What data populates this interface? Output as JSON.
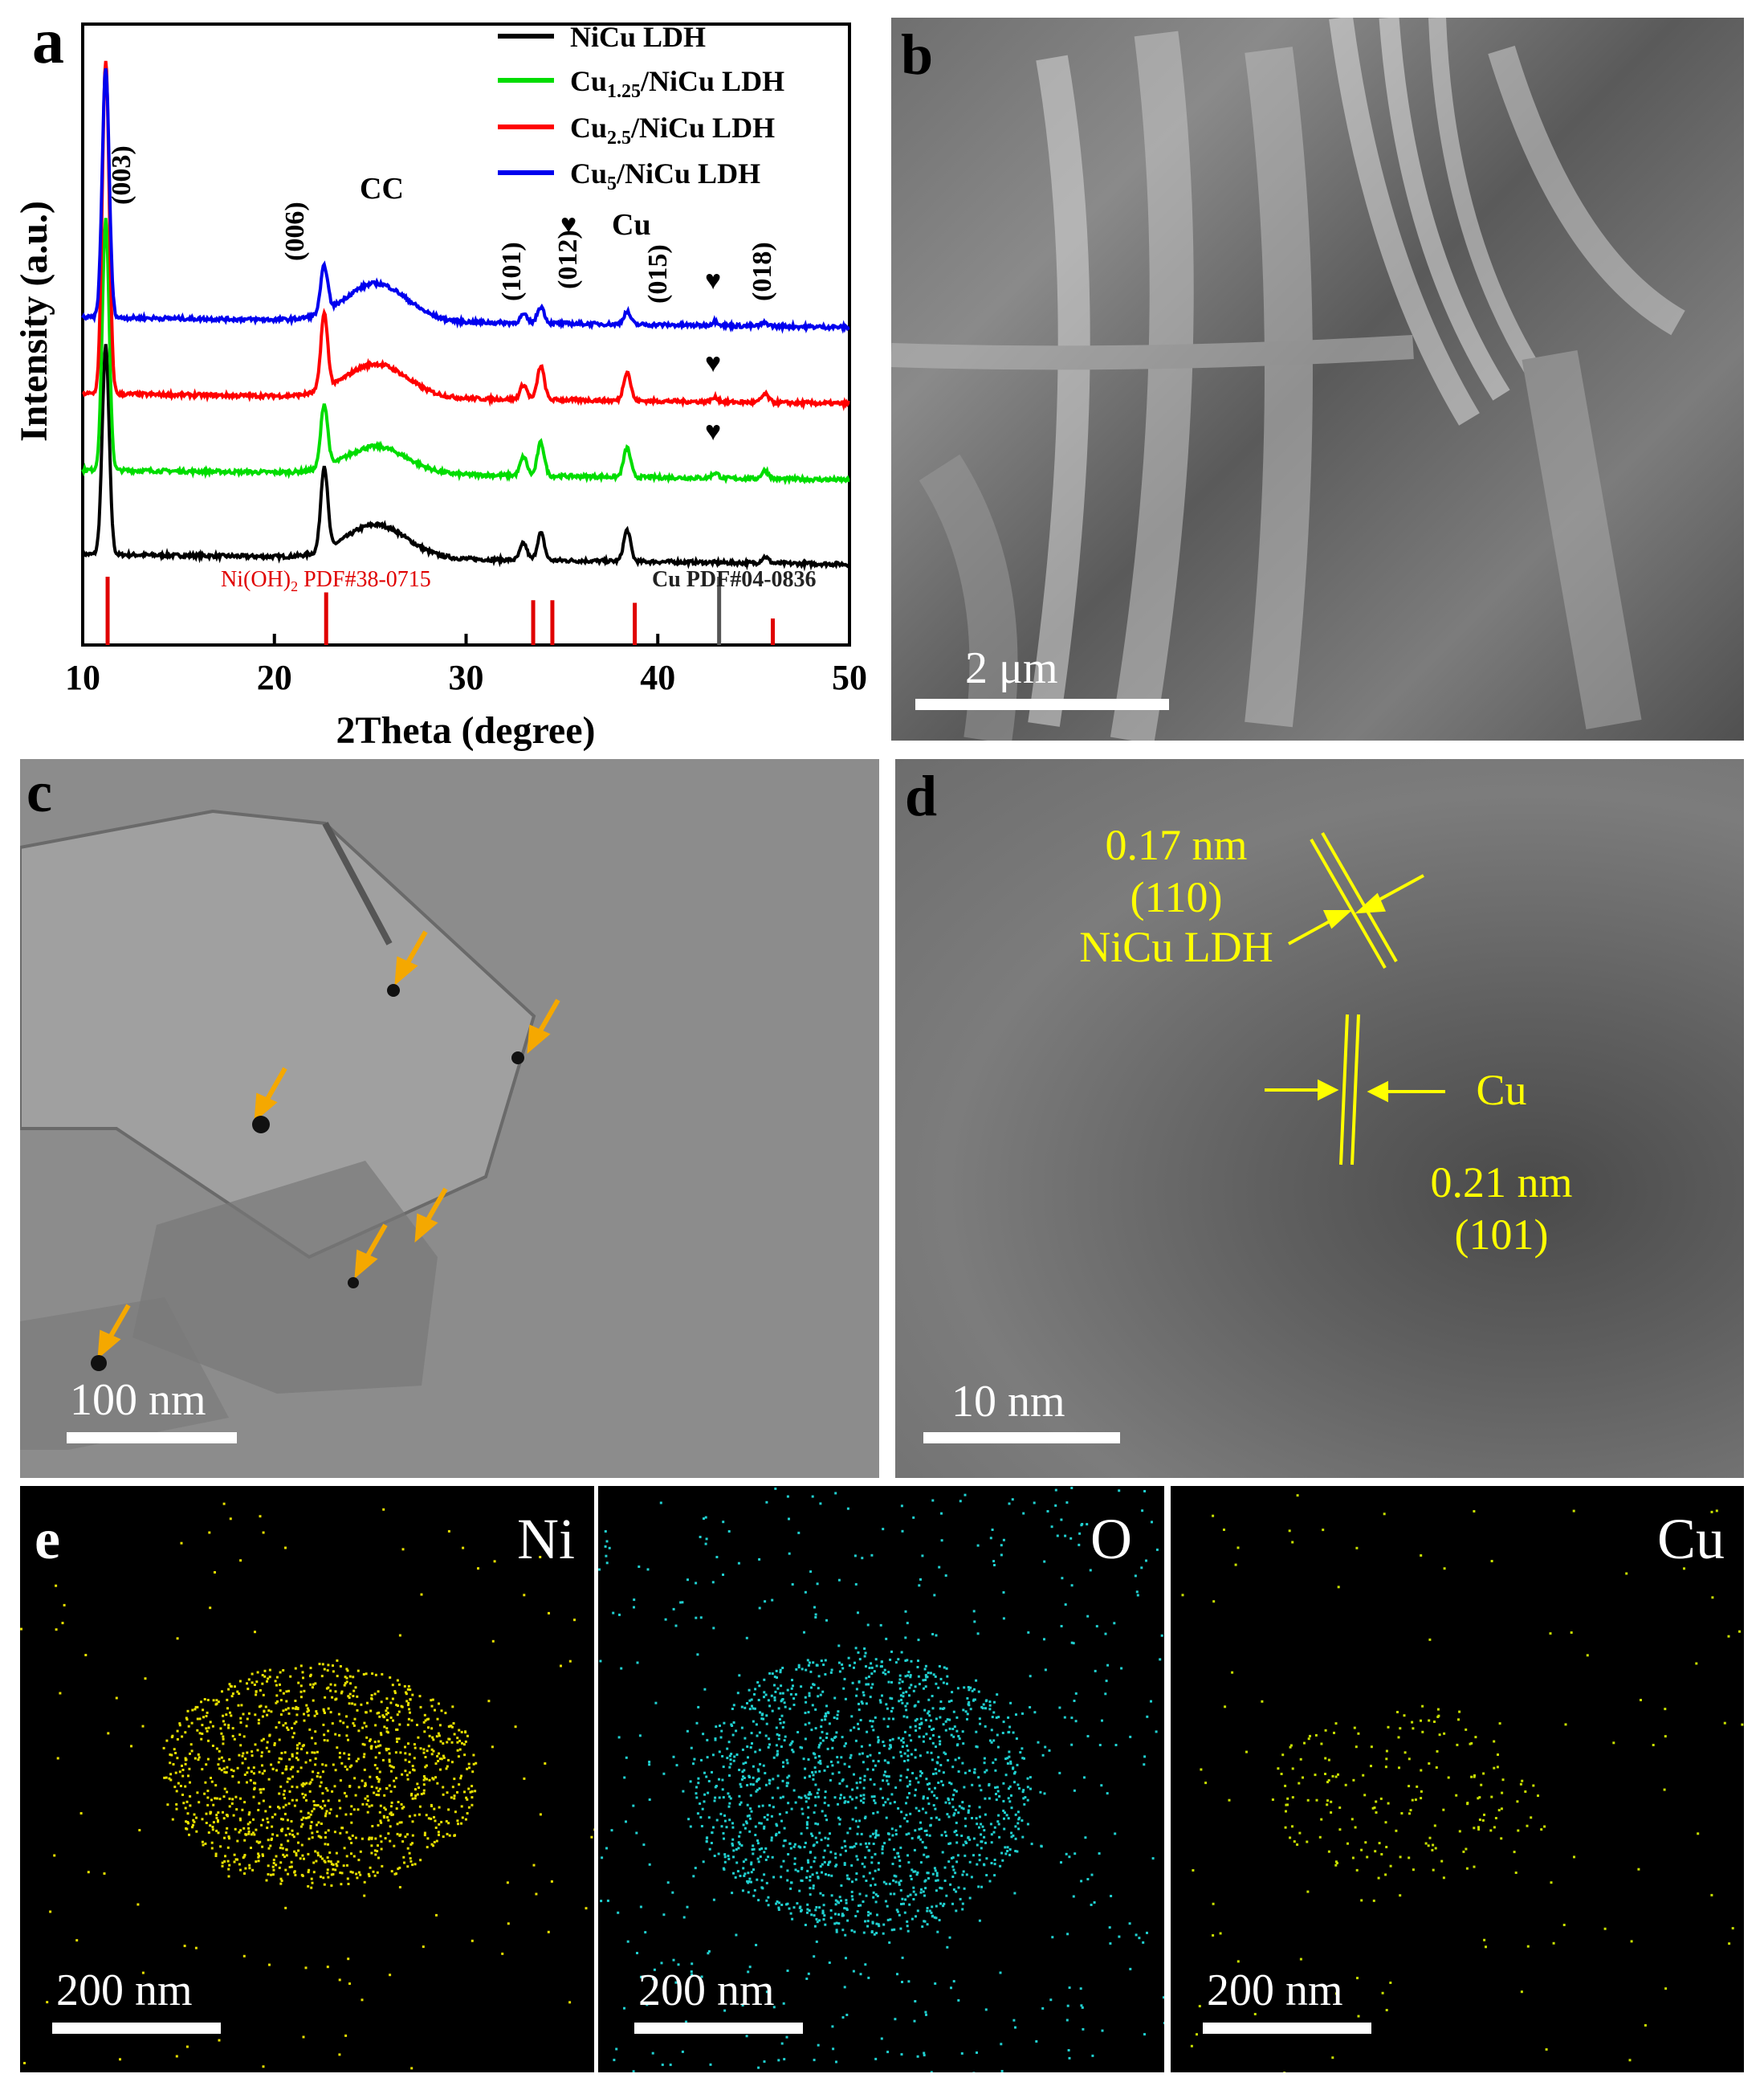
{
  "panel_a": {
    "label": "a",
    "xlabel": "2Theta (degree)",
    "ylabel": "Intensity (a.u.)",
    "legend": [
      {
        "name": "NiCu LDH",
        "color": "#000000"
      },
      {
        "name_parts": [
          "Cu",
          "1.25",
          "/NiCu LDH"
        ],
        "color": "#00dd00"
      },
      {
        "name_parts": [
          "Cu",
          "2.5",
          "/NiCu LDH"
        ],
        "color": "#ff0000"
      },
      {
        "name_parts": [
          "Cu",
          "5",
          "/NiCu LDH"
        ],
        "color": "#0000ee"
      }
    ],
    "annotations": [
      "(003)",
      "(006)",
      "CC",
      "(101)",
      "(012)",
      "Cu",
      "(015)",
      "(018)",
      "♥"
    ],
    "ref_labels": {
      "nioh2": {
        "parts": [
          "Ni(OH)",
          "2",
          " PDF#38-0715"
        ],
        "color": "#e00000"
      },
      "cu": "Cu PDF#04-0836"
    }
  },
  "chart_data": {
    "type": "line",
    "xlim": [
      10,
      50
    ],
    "xticks": [
      10,
      20,
      30,
      40,
      50
    ],
    "yticks_shown": false,
    "series": [
      {
        "name": "NiCu LDH",
        "color": "#000000",
        "offset": 0,
        "peaks": [
          [
            11.2,
            10
          ],
          [
            22.6,
            4
          ],
          [
            25.3,
            1.6
          ],
          [
            33.0,
            0.8
          ],
          [
            33.9,
            1.3
          ],
          [
            38.4,
            1.5
          ],
          [
            45.6,
            0.3
          ]
        ]
      },
      {
        "name": "Cu1.25/NiCu LDH",
        "color": "#00dd00",
        "offset": 1,
        "peaks": [
          [
            11.2,
            12
          ],
          [
            22.6,
            3
          ],
          [
            25.3,
            1.3
          ],
          [
            33.0,
            0.9
          ],
          [
            33.9,
            1.6
          ],
          [
            38.4,
            1.4
          ],
          [
            43.0,
            0.25
          ],
          [
            45.6,
            0.4
          ]
        ]
      },
      {
        "name": "Cu2.5/NiCu LDH",
        "color": "#ff0000",
        "offset": 2,
        "peaks": [
          [
            11.2,
            16
          ],
          [
            22.6,
            3.6
          ],
          [
            25.3,
            1.6
          ],
          [
            33.0,
            0.7
          ],
          [
            33.9,
            1.6
          ],
          [
            38.4,
            1.4
          ],
          [
            43.0,
            0.2
          ],
          [
            45.6,
            0.4
          ]
        ]
      },
      {
        "name": "Cu5/NiCu LDH",
        "color": "#0000ee",
        "offset": 3,
        "peaks": [
          [
            11.2,
            12
          ],
          [
            22.6,
            2.2
          ],
          [
            25.3,
            1.8
          ],
          [
            33.0,
            0.4
          ],
          [
            33.9,
            0.8
          ],
          [
            38.4,
            0.6
          ],
          [
            43.0,
            0.2
          ],
          [
            45.6,
            0.15
          ]
        ]
      }
    ],
    "reference_lines": [
      {
        "label": "Ni(OH)2 PDF#38-0715",
        "color": "#e00000",
        "positions": [
          11.3,
          22.7,
          33.5,
          34.5,
          38.8,
          46.0
        ],
        "heights": [
          1,
          0.7,
          0.55,
          0.55,
          0.5,
          0.2
        ]
      },
      {
        "label": "Cu PDF#04-0836",
        "color": "#555555",
        "positions": [
          43.2
        ],
        "heights": [
          1
        ]
      }
    ]
  },
  "panel_b": {
    "label": "b",
    "scalebar": "2 μm"
  },
  "panel_c": {
    "label": "c",
    "scalebar": "100 nm"
  },
  "panel_d": {
    "label": "d",
    "scalebar": "10 nm",
    "ann1_line1": "0.17 nm",
    "ann1_line2": "(110)",
    "ann1_line3": "NiCu LDH",
    "ann2": "Cu",
    "ann3_line1": "0.21 nm",
    "ann3_line2": "(101)"
  },
  "panel_e": {
    "label": "e",
    "maps": [
      {
        "element": "Ni",
        "scalebar": "200 nm",
        "color": "#e8e000"
      },
      {
        "element": "O",
        "scalebar": "200 nm",
        "color": "#20d0d0"
      },
      {
        "element": "Cu",
        "scalebar": "200 nm",
        "color": "#c8e000"
      }
    ]
  }
}
